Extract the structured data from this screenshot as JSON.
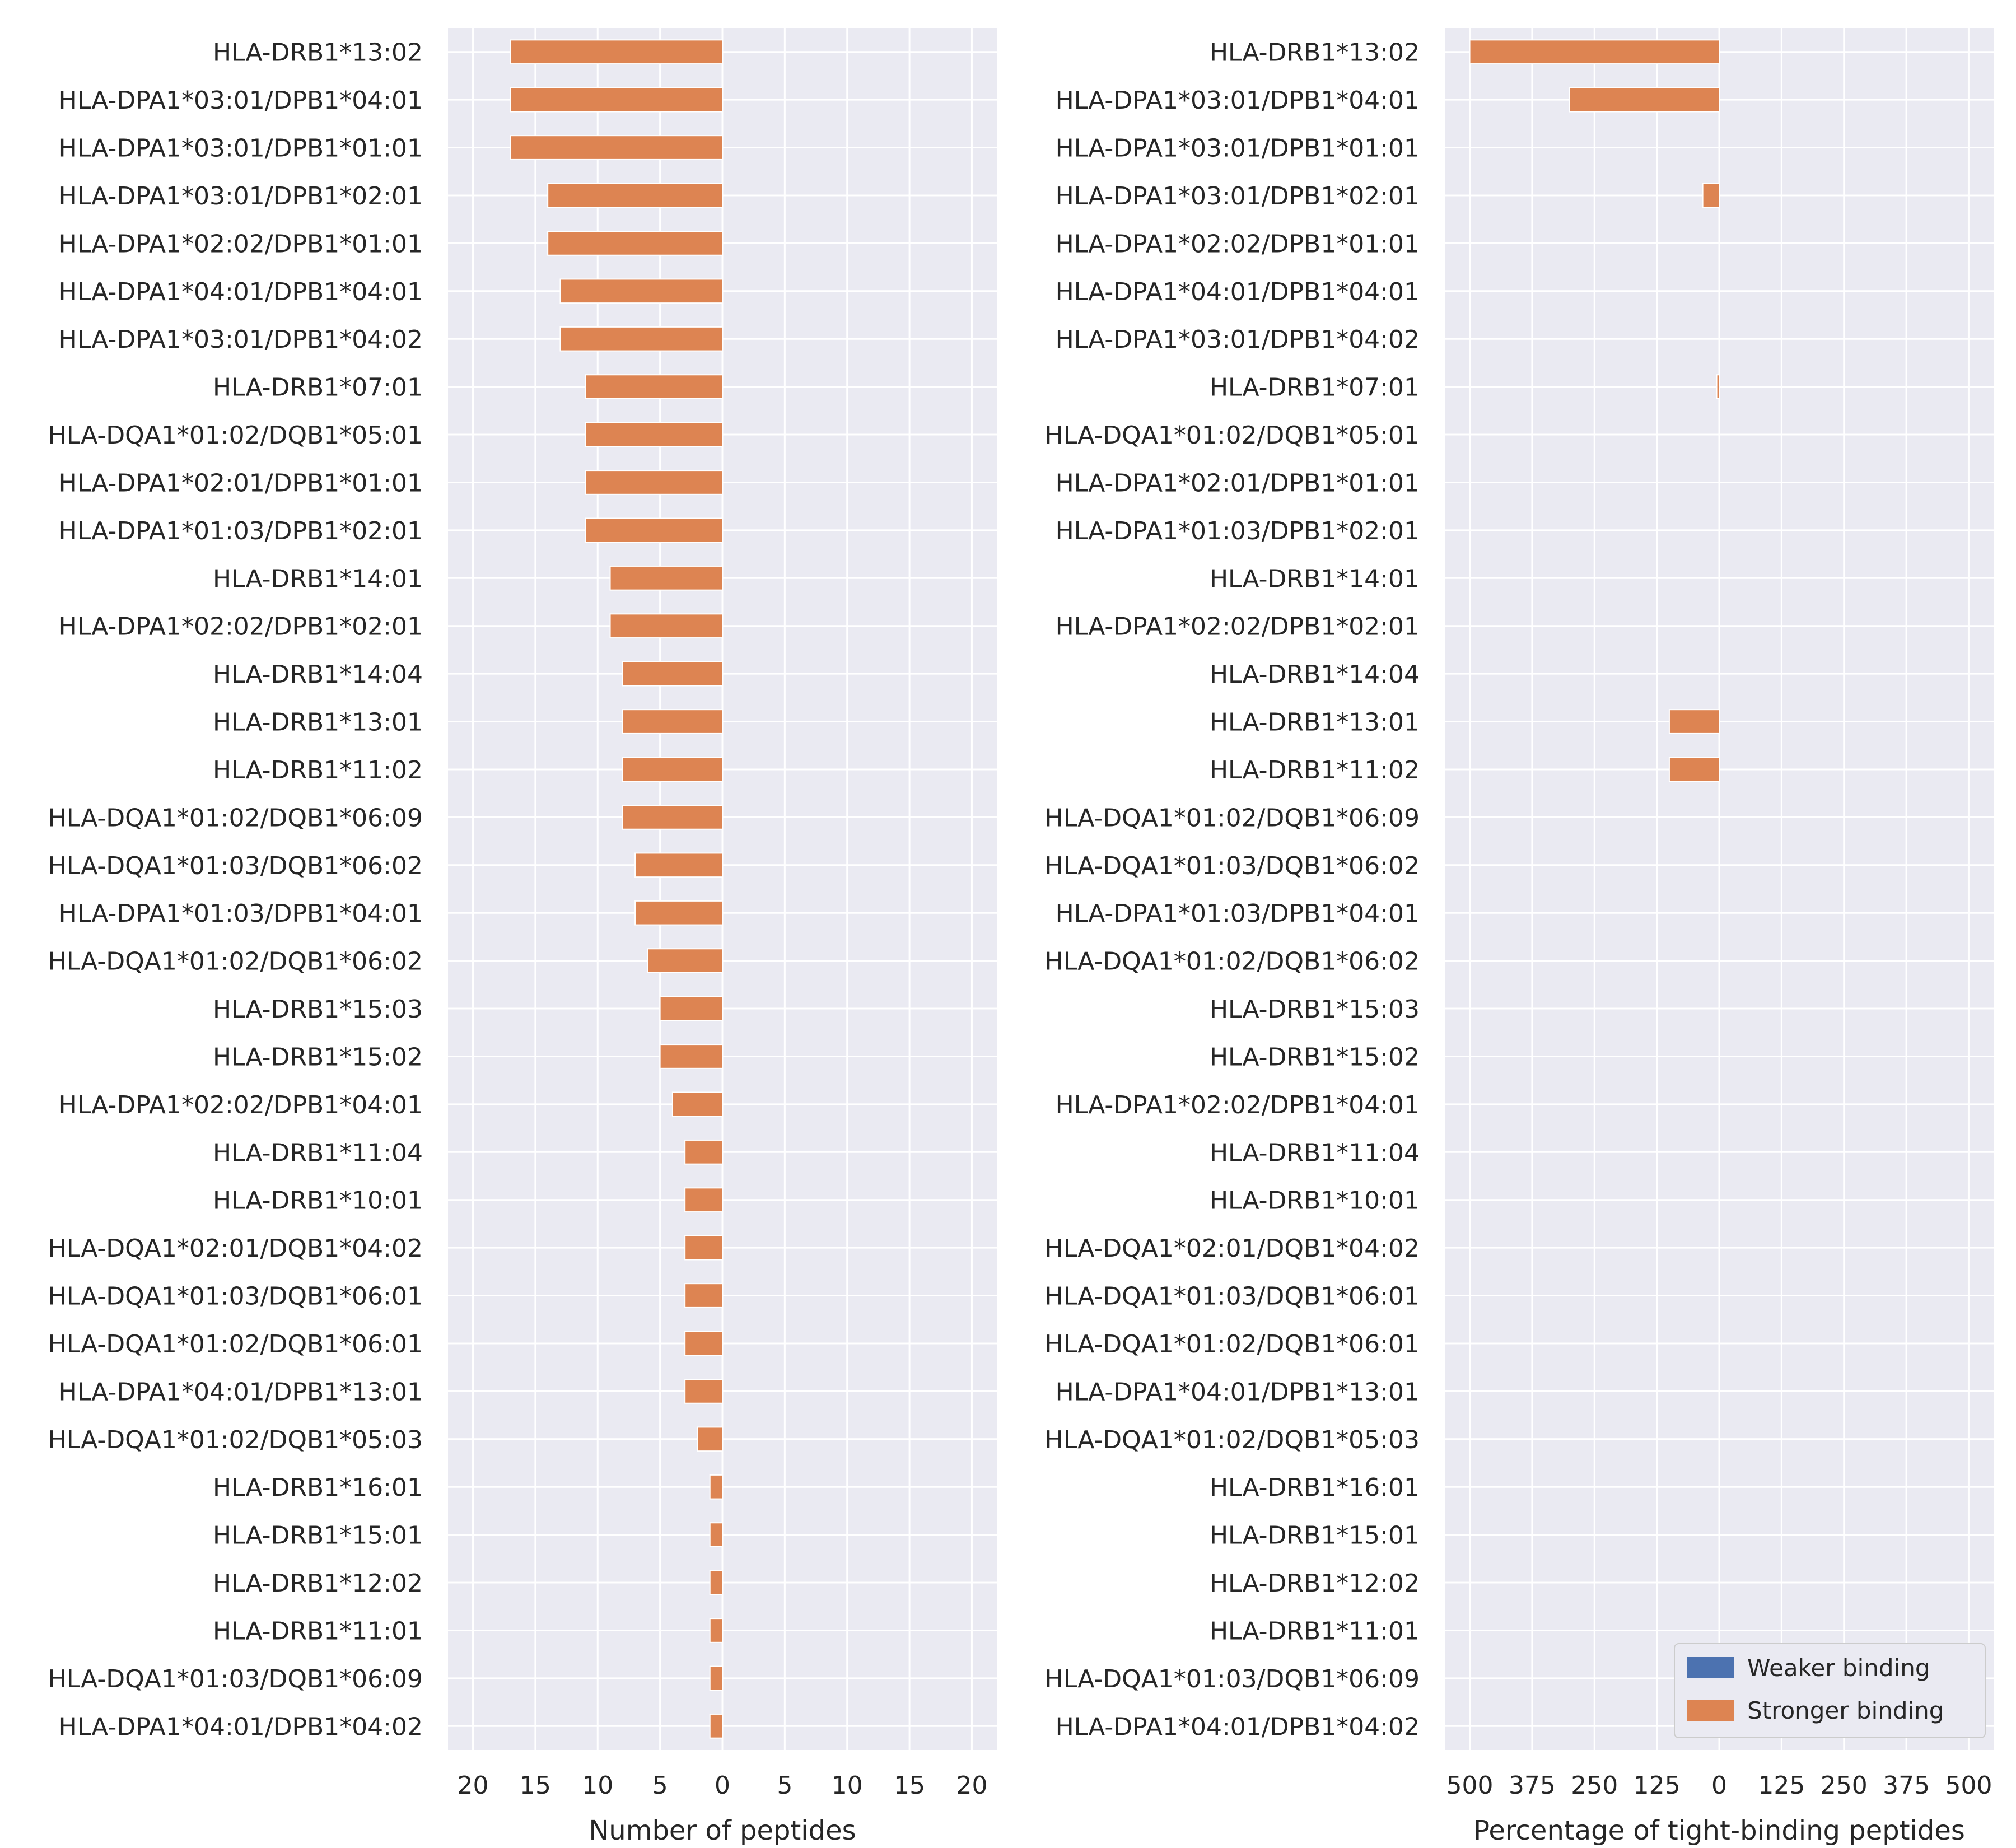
{
  "chart_data": [
    {
      "type": "bar",
      "orientation": "horizontal",
      "xlabel": "Number of peptides",
      "xlim": [
        -22,
        22
      ],
      "xticks": [
        -20,
        -15,
        -10,
        -5,
        0,
        5,
        10,
        15,
        20
      ],
      "xtick_labels": [
        "20",
        "15",
        "10",
        "5",
        "0",
        "5",
        "10",
        "15",
        "20"
      ],
      "grid": true,
      "categories": [
        "HLA-DRB1*13:02",
        "HLA-DPA1*03:01/DPB1*04:01",
        "HLA-DPA1*03:01/DPB1*01:01",
        "HLA-DPA1*03:01/DPB1*02:01",
        "HLA-DPA1*02:02/DPB1*01:01",
        "HLA-DPA1*04:01/DPB1*04:01",
        "HLA-DPA1*03:01/DPB1*04:02",
        "HLA-DRB1*07:01",
        "HLA-DQA1*01:02/DQB1*05:01",
        "HLA-DPA1*02:01/DPB1*01:01",
        "HLA-DPA1*01:03/DPB1*02:01",
        "HLA-DRB1*14:01",
        "HLA-DPA1*02:02/DPB1*02:01",
        "HLA-DRB1*14:04",
        "HLA-DRB1*13:01",
        "HLA-DRB1*11:02",
        "HLA-DQA1*01:02/DQB1*06:09",
        "HLA-DQA1*01:03/DQB1*06:02",
        "HLA-DPA1*01:03/DPB1*04:01",
        "HLA-DQA1*01:02/DQB1*06:02",
        "HLA-DRB1*15:03",
        "HLA-DRB1*15:02",
        "HLA-DPA1*02:02/DPB1*04:01",
        "HLA-DRB1*11:04",
        "HLA-DRB1*10:01",
        "HLA-DQA1*02:01/DQB1*04:02",
        "HLA-DQA1*01:03/DQB1*06:01",
        "HLA-DQA1*01:02/DQB1*06:01",
        "HLA-DPA1*04:01/DPB1*13:01",
        "HLA-DQA1*01:02/DQB1*05:03",
        "HLA-DRB1*16:01",
        "HLA-DRB1*15:01",
        "HLA-DRB1*12:02",
        "HLA-DRB1*11:01",
        "HLA-DQA1*01:03/DQB1*06:09",
        "HLA-DPA1*04:01/DPB1*04:02"
      ],
      "series": [
        {
          "name": "Stronger binding",
          "color": "#dd8452",
          "values": [
            -17,
            -17,
            -17,
            -14,
            -14,
            -13,
            -13,
            -11,
            -11,
            -11,
            -11,
            -9,
            -9,
            -8,
            -8,
            -8,
            -8,
            -7,
            -7,
            -6,
            -5,
            -5,
            -4,
            -3,
            -3,
            -3,
            -3,
            -3,
            -3,
            -2,
            -1,
            -1,
            -1,
            -1,
            -1,
            -1
          ]
        },
        {
          "name": "Weaker binding",
          "color": "#4c72b0",
          "values": [
            0,
            0,
            0,
            0,
            0,
            0,
            0,
            0,
            0,
            0,
            0,
            0,
            0,
            0,
            0,
            0,
            0,
            0,
            0,
            0,
            0,
            0,
            0,
            0,
            0,
            0,
            0,
            0,
            0,
            0,
            0,
            0,
            0,
            0,
            0,
            0
          ]
        }
      ]
    },
    {
      "type": "bar",
      "orientation": "horizontal",
      "xlabel": "Percentage of tight-binding peptides",
      "xlim": [
        -550,
        550
      ],
      "xticks": [
        -500,
        -375,
        -250,
        -125,
        0,
        125,
        250,
        375,
        500
      ],
      "xtick_labels": [
        "500",
        "375",
        "250",
        "125",
        "0",
        "125",
        "250",
        "375",
        "500"
      ],
      "grid": true,
      "legend": {
        "placement": "lower-right",
        "entries": [
          "Weaker binding",
          "Stronger binding"
        ]
      },
      "categories": [
        "HLA-DRB1*13:02",
        "HLA-DPA1*03:01/DPB1*04:01",
        "HLA-DPA1*03:01/DPB1*01:01",
        "HLA-DPA1*03:01/DPB1*02:01",
        "HLA-DPA1*02:02/DPB1*01:01",
        "HLA-DPA1*04:01/DPB1*04:01",
        "HLA-DPA1*03:01/DPB1*04:02",
        "HLA-DRB1*07:01",
        "HLA-DQA1*01:02/DQB1*05:01",
        "HLA-DPA1*02:01/DPB1*01:01",
        "HLA-DPA1*01:03/DPB1*02:01",
        "HLA-DRB1*14:01",
        "HLA-DPA1*02:02/DPB1*02:01",
        "HLA-DRB1*14:04",
        "HLA-DRB1*13:01",
        "HLA-DRB1*11:02",
        "HLA-DQA1*01:02/DQB1*06:09",
        "HLA-DQA1*01:03/DQB1*06:02",
        "HLA-DPA1*01:03/DPB1*04:01",
        "HLA-DQA1*01:02/DQB1*06:02",
        "HLA-DRB1*15:03",
        "HLA-DRB1*15:02",
        "HLA-DPA1*02:02/DPB1*04:01",
        "HLA-DRB1*11:04",
        "HLA-DRB1*10:01",
        "HLA-DQA1*02:01/DQB1*04:02",
        "HLA-DQA1*01:03/DQB1*06:01",
        "HLA-DQA1*01:02/DQB1*06:01",
        "HLA-DPA1*04:01/DPB1*13:01",
        "HLA-DQA1*01:02/DQB1*05:03",
        "HLA-DRB1*16:01",
        "HLA-DRB1*15:01",
        "HLA-DRB1*12:02",
        "HLA-DRB1*11:01",
        "HLA-DQA1*01:03/DQB1*06:09",
        "HLA-DPA1*04:01/DPB1*04:02"
      ],
      "series": [
        {
          "name": "Stronger binding",
          "color": "#dd8452",
          "values": [
            -500,
            -300,
            0,
            -33,
            0,
            0,
            0,
            -5,
            0,
            0,
            0,
            0,
            0,
            0,
            -100,
            -100,
            0,
            0,
            0,
            0,
            0,
            0,
            0,
            0,
            0,
            0,
            0,
            0,
            0,
            0,
            0,
            0,
            0,
            0,
            0,
            0
          ]
        },
        {
          "name": "Weaker binding",
          "color": "#4c72b0",
          "values": [
            0,
            0,
            0,
            0,
            0,
            0,
            0,
            0,
            0,
            0,
            0,
            0,
            0,
            0,
            0,
            0,
            0,
            0,
            0,
            0,
            0,
            0,
            0,
            0,
            0,
            0,
            0,
            0,
            0,
            0,
            0,
            0,
            0,
            0,
            0,
            0
          ]
        }
      ]
    }
  ],
  "style": {
    "panel_background": "#eaeaf2",
    "grid_color": "#ffffff",
    "text_color": "#262626"
  }
}
